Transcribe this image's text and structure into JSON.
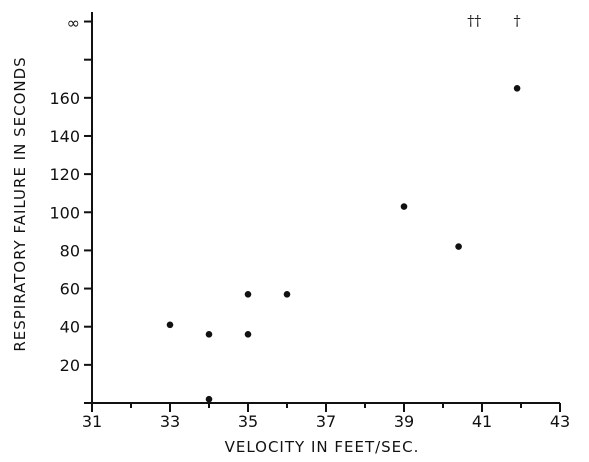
{
  "chart_data": {
    "type": "scatter",
    "xlabel": "VELOCITY IN FEET/SEC.",
    "ylabel": "RESPIRATORY FAILURE IN SECONDS",
    "xlim": [
      31,
      43
    ],
    "ylim": [
      0,
      205
    ],
    "x_ticks": [
      31,
      33,
      35,
      37,
      39,
      41,
      43
    ],
    "y_ticks": [
      20,
      40,
      60,
      80,
      100,
      120,
      140,
      160
    ],
    "y_infinity_tick": {
      "label": "∞",
      "value": 200
    },
    "points": [
      {
        "x": 33.0,
        "y": 41
      },
      {
        "x": 34.0,
        "y": 36
      },
      {
        "x": 34.0,
        "y": 2
      },
      {
        "x": 35.0,
        "y": 57
      },
      {
        "x": 35.0,
        "y": 36
      },
      {
        "x": 36.0,
        "y": 57
      },
      {
        "x": 39.0,
        "y": 103
      },
      {
        "x": 40.4,
        "y": 82
      },
      {
        "x": 41.9,
        "y": 165
      }
    ],
    "annotations": [
      {
        "text": "††",
        "x": 40.8,
        "y": 200
      },
      {
        "text": "†",
        "x": 41.9,
        "y": 200
      }
    ]
  }
}
